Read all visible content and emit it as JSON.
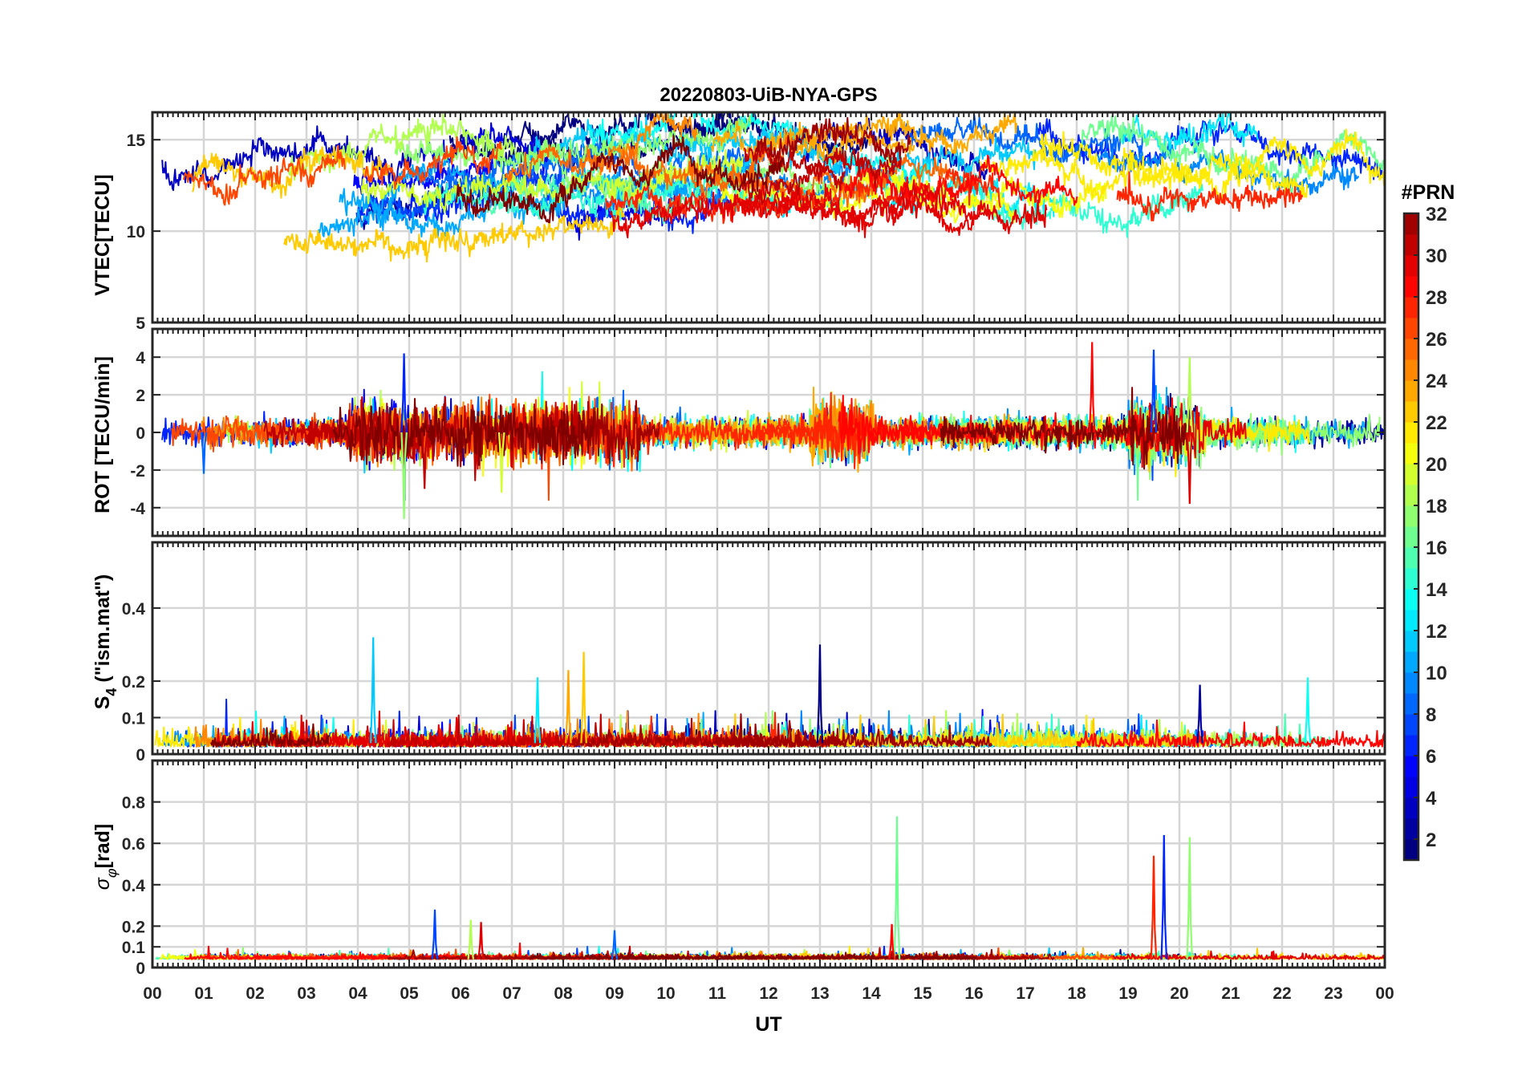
{
  "chart_data": {
    "type": "line",
    "title": "20220803-UiB-NYA-GPS",
    "xlabel": "UT",
    "x_ticks": [
      "00",
      "01",
      "02",
      "03",
      "04",
      "05",
      "06",
      "07",
      "08",
      "09",
      "10",
      "11",
      "12",
      "13",
      "14",
      "15",
      "16",
      "17",
      "18",
      "19",
      "20",
      "21",
      "22",
      "23",
      "00"
    ],
    "xlim": [
      0,
      24
    ],
    "grid": true,
    "colorbar": {
      "label": "#PRN",
      "range": [
        1,
        32
      ],
      "ticks": [
        "2",
        "4",
        "6",
        "8",
        "10",
        "12",
        "14",
        "16",
        "18",
        "20",
        "22",
        "24",
        "26",
        "28",
        "30",
        "32"
      ],
      "colormap": "jet",
      "placement": "right"
    },
    "panels": [
      {
        "ylabel": "VTEC[TECU]",
        "ylim": [
          5,
          16.5
        ],
        "yticks": [
          "5",
          "10",
          "15"
        ],
        "series_summary": "32 PRN traces, VTEC mostly 8-15 TECU, peaks near 16 TECU at ~08 UT and ~14 UT",
        "typical_range": [
          7.5,
          16.5
        ]
      },
      {
        "ylabel": "ROT [TECU/min]",
        "ylim": [
          -5.5,
          5.5
        ],
        "yticks": [
          "-4",
          "-2",
          "0",
          "2",
          "4"
        ],
        "spikes": [
          {
            "t": 4.9,
            "value": 4.2
          },
          {
            "t": 4.9,
            "value": -4.6
          },
          {
            "t": 18.3,
            "value": 4.8
          },
          {
            "t": 19.5,
            "value": 4.4
          },
          {
            "t": 20.2,
            "value": 4.0
          },
          {
            "t": 20.2,
            "value": -3.8
          },
          {
            "t": 1.0,
            "value": -2.2
          },
          {
            "t": 6.8,
            "value": -3.2
          },
          {
            "t": 5.3,
            "value": -3.0
          }
        ]
      },
      {
        "ylabel": "S4 (\"ism.mat\")",
        "ylabel_main": "S",
        "ylabel_sub": "4",
        "ylabel_rest": " (\"ism.mat\")",
        "ylim": [
          0,
          0.58
        ],
        "yticks": [
          "0",
          "0.1",
          "0.2",
          "0.4"
        ],
        "peaks": [
          {
            "t": 4.3,
            "value": 0.32
          },
          {
            "t": 8.4,
            "value": 0.28
          },
          {
            "t": 13.0,
            "value": 0.3
          },
          {
            "t": 7.5,
            "value": 0.21
          },
          {
            "t": 8.1,
            "value": 0.23
          },
          {
            "t": 20.4,
            "value": 0.19
          },
          {
            "t": 22.5,
            "value": 0.21
          }
        ]
      },
      {
        "ylabel": "σφ[rad]",
        "ylabel_sigma": "σ",
        "ylabel_phi": "φ",
        "ylabel_rest": "[rad]",
        "ylim": [
          0,
          1.0
        ],
        "yticks": [
          "0",
          "0.1",
          "0.2",
          "0.4",
          "0.6",
          "0.8"
        ],
        "peaks": [
          {
            "t": 14.5,
            "value": 0.73
          },
          {
            "t": 19.5,
            "value": 0.54
          },
          {
            "t": 19.7,
            "value": 0.64
          },
          {
            "t": 20.2,
            "value": 0.63
          },
          {
            "t": 14.4,
            "value": 0.21
          },
          {
            "t": 5.5,
            "value": 0.28
          },
          {
            "t": 6.2,
            "value": 0.23
          },
          {
            "t": 6.4,
            "value": 0.22
          },
          {
            "t": 9.0,
            "value": 0.18
          }
        ]
      }
    ]
  }
}
